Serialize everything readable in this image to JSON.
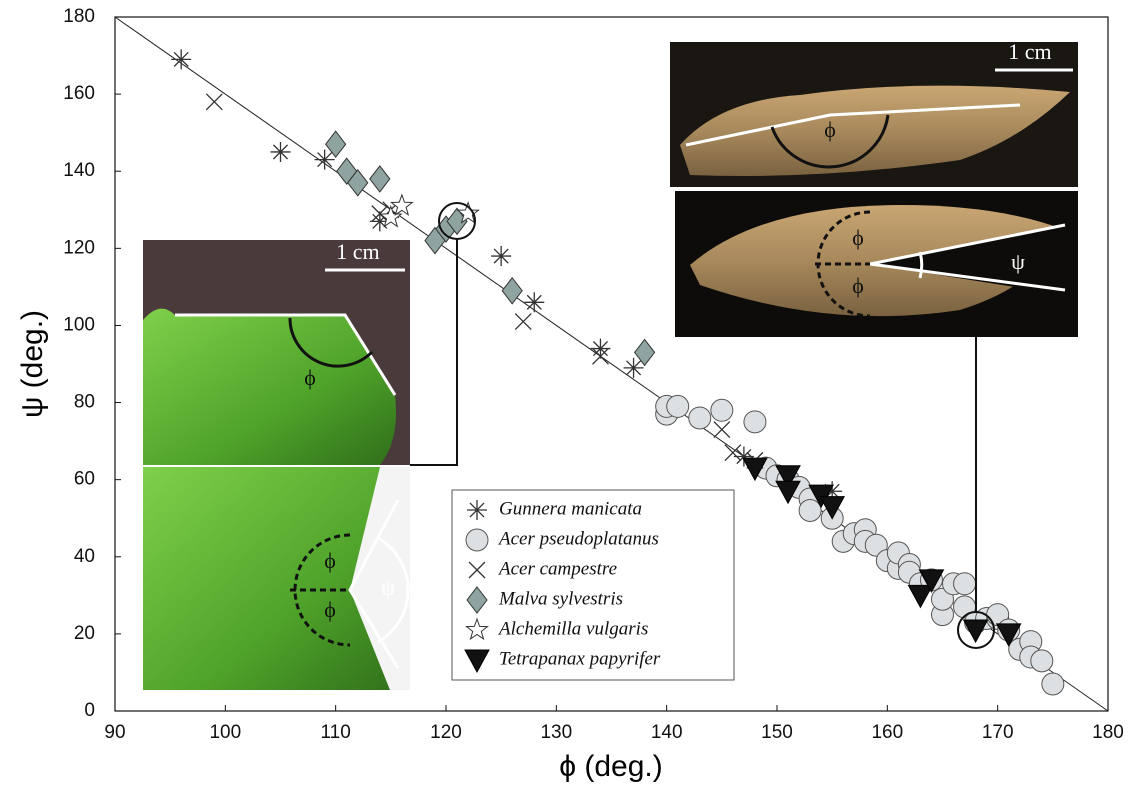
{
  "chart_data": {
    "type": "scatter",
    "xlabel": "ϕ (deg.)",
    "ylabel": "ψ (deg.)",
    "xlim": [
      90,
      180
    ],
    "ylim": [
      0,
      180
    ],
    "xticks": [
      90,
      100,
      110,
      120,
      130,
      140,
      150,
      160,
      170,
      180
    ],
    "yticks": [
      0,
      20,
      40,
      60,
      80,
      100,
      120,
      140,
      160,
      180
    ],
    "reference_line": {
      "x": [
        90,
        180
      ],
      "y": [
        180,
        0
      ]
    },
    "series": [
      {
        "name": "Gunnera manicata",
        "marker": "asterisk",
        "color": "#333333",
        "x": [
          96,
          105,
          109,
          114,
          125,
          128,
          134,
          137,
          147,
          155
        ],
        "y": [
          169,
          145,
          143,
          127,
          118,
          106,
          94,
          89,
          66,
          57
        ]
      },
      {
        "name": "Acer pseudoplatanus",
        "marker": "circle",
        "color": "#dde0e2",
        "x": [
          140,
          140,
          141,
          143,
          145,
          148,
          149,
          150,
          151,
          152,
          153,
          153,
          155,
          156,
          157,
          158,
          158,
          159,
          160,
          161,
          161,
          162,
          162,
          163,
          164,
          165,
          165,
          166,
          167,
          167,
          168,
          169,
          170,
          170,
          171,
          172,
          173,
          173,
          174,
          175
        ],
        "y": [
          77,
          79,
          79,
          76,
          78,
          75,
          63,
          61,
          60,
          58,
          55,
          52,
          50,
          44,
          46,
          47,
          44,
          43,
          39,
          37,
          41,
          38,
          36,
          33,
          34,
          25,
          29,
          33,
          27,
          33,
          23,
          24,
          24,
          25,
          21,
          16,
          18,
          14,
          13,
          7
        ]
      },
      {
        "name": "Acer campestre",
        "marker": "cross",
        "color": "#333333",
        "x": [
          99,
          114,
          115,
          127,
          134,
          145,
          146,
          148
        ],
        "y": [
          158,
          129,
          130,
          101,
          92,
          73,
          67,
          65
        ]
      },
      {
        "name": "Malva sylvestris",
        "marker": "diamond",
        "color": "#8fa3a0",
        "x": [
          110,
          111,
          112,
          114,
          119,
          120,
          121,
          126,
          138
        ],
        "y": [
          147,
          140,
          137,
          138,
          122,
          125,
          127,
          109,
          93
        ]
      },
      {
        "name": "Alchemilla vulgaris",
        "marker": "star",
        "color": "#ffffff",
        "x": [
          115,
          116,
          122
        ],
        "y": [
          128,
          131,
          129
        ]
      },
      {
        "name": "Tetrapanax papyrifer",
        "marker": "triangle-down",
        "color": "#111111",
        "x": [
          148,
          151,
          151,
          154,
          155,
          163,
          164,
          168,
          171
        ],
        "y": [
          63,
          61,
          57,
          56,
          53,
          30,
          34,
          21,
          20
        ]
      }
    ],
    "annotations": [
      "1 cm",
      "ϕ",
      "ϕ",
      "ϕ",
      "ψ",
      "1 cm",
      "ϕ",
      "ϕ",
      "ϕ",
      "ψ"
    ]
  }
}
